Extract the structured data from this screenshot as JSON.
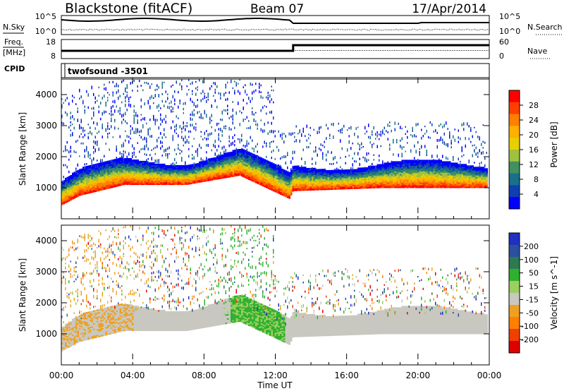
{
  "header": {
    "station": "Blackstone (fitACF)",
    "beam": "Beam 07",
    "date": "17/Apr/2014"
  },
  "summary": {
    "nsky_label": "N.Sky",
    "nsky_ticks": [
      "10^5",
      "10^0"
    ],
    "nsearch_label": "N.Search",
    "nsearch_ticks": [
      "10^5",
      "10^0"
    ],
    "freq_label": "Freq.",
    "freq_unit": "[MHz]",
    "freq_ticks": [
      "18",
      "8"
    ],
    "nave_label": "Nave",
    "nave_ticks": [
      "60",
      "0"
    ],
    "cpid_label": "CPID",
    "cpid_value": "twofsound -3501"
  },
  "chart_data": [
    {
      "type": "heatmap",
      "name": "power-panel",
      "ylabel": "Slant Range [km]",
      "ylim": [
        0,
        4500
      ],
      "yticks": [
        1000,
        2000,
        3000,
        4000
      ],
      "xlabel": "Time UT",
      "xlim": [
        "00:00",
        "24:00"
      ],
      "xticks": [
        "00:00",
        "04:00",
        "08:00",
        "12:00",
        "16:00",
        "20:00",
        "00:00"
      ],
      "colorbar": {
        "label": "Power [dB]",
        "ticks": [
          "28",
          "24",
          "20",
          "16",
          "12",
          "8",
          "4"
        ],
        "colors": [
          "#ff0000",
          "#ff4000",
          "#ff8000",
          "#ffb000",
          "#e8d000",
          "#a0c040",
          "#409060",
          "#1a6f8a",
          "#1040b0",
          "#0000ff"
        ]
      },
      "band_center_km": [
        {
          "t": 0.0,
          "r": 700
        },
        {
          "t": 1.0,
          "r": 1000
        },
        {
          "t": 3.5,
          "r": 1350
        },
        {
          "t": 7.0,
          "r": 1350
        },
        {
          "t": 10.0,
          "r": 1650
        },
        {
          "t": 12.8,
          "r": 900
        },
        {
          "t": 13.0,
          "r": 1150
        },
        {
          "t": 18.0,
          "r": 1250
        },
        {
          "t": 24.0,
          "r": 1250
        }
      ]
    },
    {
      "type": "heatmap",
      "name": "velocity-panel",
      "ylabel": "Slant Range [km]",
      "ylim": [
        0,
        4500
      ],
      "yticks": [
        1000,
        2000,
        3000,
        4000
      ],
      "xlabel": "Time UT",
      "xlim": [
        "00:00",
        "24:00"
      ],
      "xticks": [
        "00:00",
        "04:00",
        "08:00",
        "12:00",
        "16:00",
        "20:00",
        "00:00"
      ],
      "colorbar": {
        "label": "Velocity [m s^-1]",
        "ticks": [
          "200",
          "100",
          "50",
          "15",
          "-15",
          "-50",
          "-100",
          "-200"
        ],
        "colors": [
          "#2030c0",
          "#2a50a0",
          "#2e7a50",
          "#30b030",
          "#9ad060",
          "#c8c8c0",
          "#f0a020",
          "#ff8000",
          "#f04000",
          "#e00000"
        ]
      }
    }
  ],
  "xaxis": {
    "label": "Time UT",
    "ticks": [
      "00:00",
      "04:00",
      "08:00",
      "12:00",
      "16:00",
      "20:00",
      "00:00"
    ]
  }
}
